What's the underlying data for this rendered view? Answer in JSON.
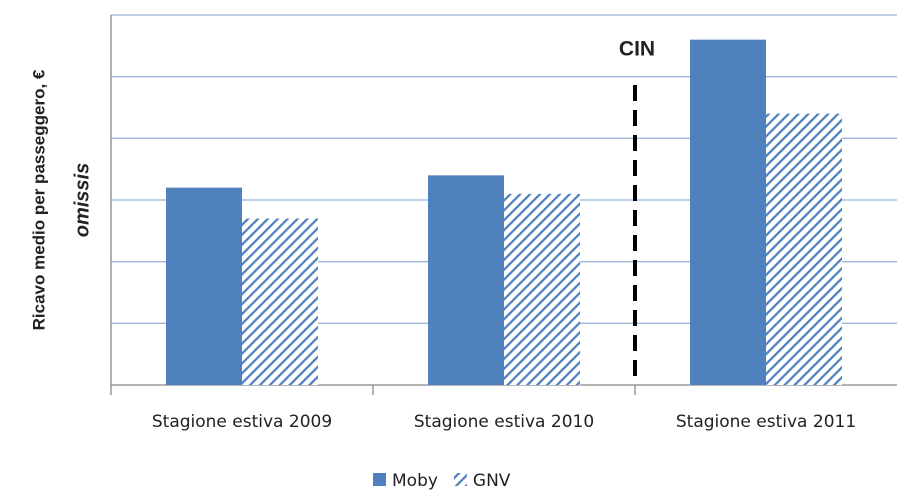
{
  "chart_data": {
    "type": "bar",
    "y_label": "Ricavo medio per passeggero, €",
    "y_sublabel": "omissis",
    "annotation": "CIN",
    "categories": [
      "Stagione estiva 2009",
      "Stagione estiva 2010",
      "Stagione estiva 2011"
    ],
    "series": [
      {
        "name": "Moby",
        "color": "#4f81bd",
        "pattern": "solid",
        "values": [
          3.2,
          3.4,
          5.6
        ]
      },
      {
        "name": "GNV",
        "color": "#4f81bd",
        "pattern": "hatch",
        "values": [
          2.7,
          3.1,
          4.4
        ]
      }
    ],
    "ylim": [
      0,
      6
    ],
    "yticks": [
      0,
      1,
      2,
      3,
      4,
      5,
      6
    ],
    "y_tick_labels": false,
    "grid": true,
    "legend": "bottom"
  }
}
